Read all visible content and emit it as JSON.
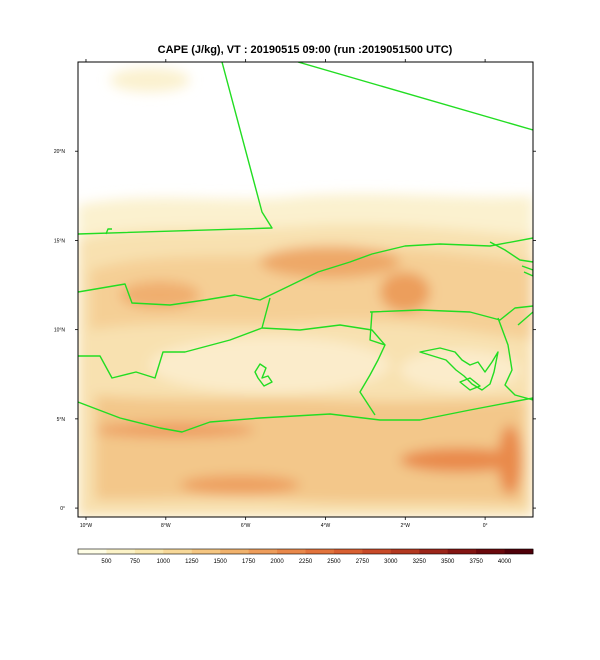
{
  "title": "CAPE (J/kg), VT : 20190515  09:00 (run :2019051500 UTC)",
  "field": {
    "name": "CAPE",
    "unit": "J/kg",
    "valid_time": "20190515  09:00",
    "run": "2019051500 UTC"
  },
  "x_axis": {
    "ticks": [
      {
        "label": "10°W",
        "lon": -10
      },
      {
        "label": "8°W",
        "lon": -8
      },
      {
        "label": "6°W",
        "lon": -6
      },
      {
        "label": "4°W",
        "lon": -4
      },
      {
        "label": "2°W",
        "lon": -2
      },
      {
        "label": "0°",
        "lon": 0
      }
    ],
    "range": [
      -10.2,
      1.2
    ]
  },
  "y_axis": {
    "ticks": [
      {
        "label": "0°",
        "lat": 0
      },
      {
        "label": "5°N",
        "lat": 5
      },
      {
        "label": "10°N",
        "lat": 10
      },
      {
        "label": "15°N",
        "lat": 15
      },
      {
        "label": "20°N",
        "lat": 20
      }
    ],
    "range": [
      -0.5,
      25
    ]
  },
  "colorbar": {
    "labels": [
      "500",
      "750",
      "1000",
      "1250",
      "1500",
      "1750",
      "2000",
      "2250",
      "2500",
      "2750",
      "3000",
      "3250",
      "3500",
      "3750",
      "4000"
    ],
    "colors": [
      "#fffee6",
      "#fcf3c7",
      "#f9e7ad",
      "#f7d898",
      "#f5c681",
      "#f1b26c",
      "#ee9d5b",
      "#e9884a",
      "#e2733c",
      "#d85f31",
      "#c84a28",
      "#b33820",
      "#9c2519",
      "#831512",
      "#6a080c",
      "#4f0009"
    ]
  },
  "colors": {
    "borders": "#22dd22",
    "frame": "#000000"
  }
}
